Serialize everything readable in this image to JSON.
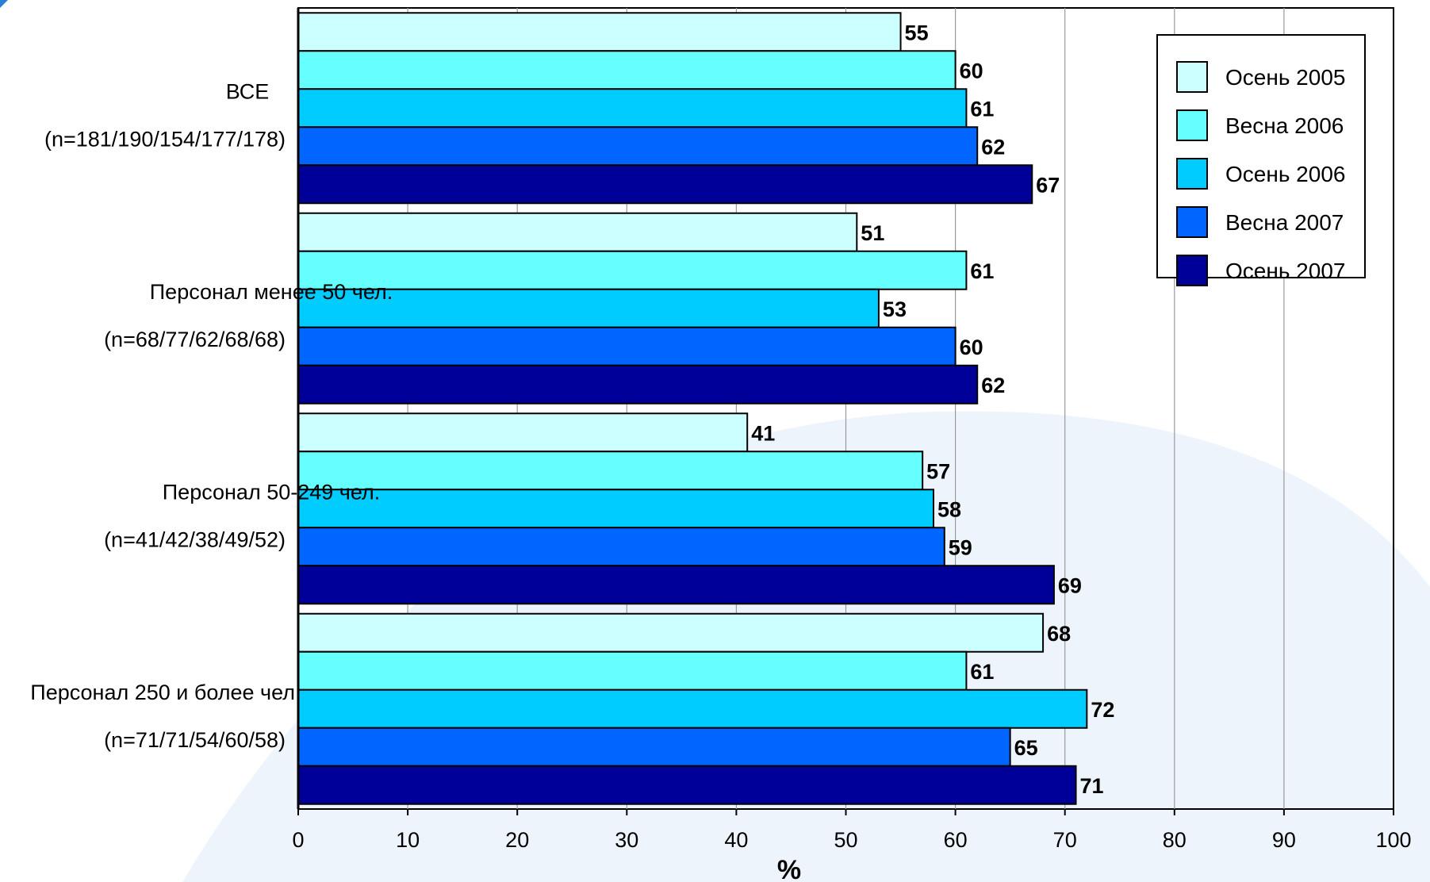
{
  "chart_data": {
    "type": "bar",
    "orientation": "horizontal",
    "categories": [
      {
        "name": "ВСЕ",
        "sample": "(n=181/190/154/177/178)"
      },
      {
        "name": "Персонал менее 50 чел.",
        "sample": "(n=68/77/62/68/68)"
      },
      {
        "name": "Персонал 50-249 чел.",
        "sample": "(n=41/42/38/49/52)"
      },
      {
        "name": "Персонал 250 и более чел",
        "sample": "(n=71/71/54/60/58)"
      }
    ],
    "series": [
      {
        "name": "Осень 2005",
        "color": "#CCFFFF",
        "values": [
          55,
          51,
          41,
          68
        ]
      },
      {
        "name": "Весна 2006",
        "color": "#66FFFF",
        "values": [
          60,
          61,
          57,
          61
        ]
      },
      {
        "name": "Осень 2006",
        "color": "#00CCFF",
        "values": [
          61,
          53,
          58,
          72
        ]
      },
      {
        "name": "Весна 2007",
        "color": "#0066FF",
        "values": [
          62,
          60,
          59,
          65
        ]
      },
      {
        "name": "Осень 2007",
        "color": "#000099",
        "values": [
          67,
          62,
          69,
          71
        ]
      }
    ],
    "xlabel": "%",
    "xlim": [
      0,
      100
    ],
    "xticks": [
      0,
      10,
      20,
      30,
      40,
      50,
      60,
      70,
      80,
      90,
      100
    ],
    "grid": "vertical",
    "legend_position": "top-right",
    "data_labels": true
  }
}
